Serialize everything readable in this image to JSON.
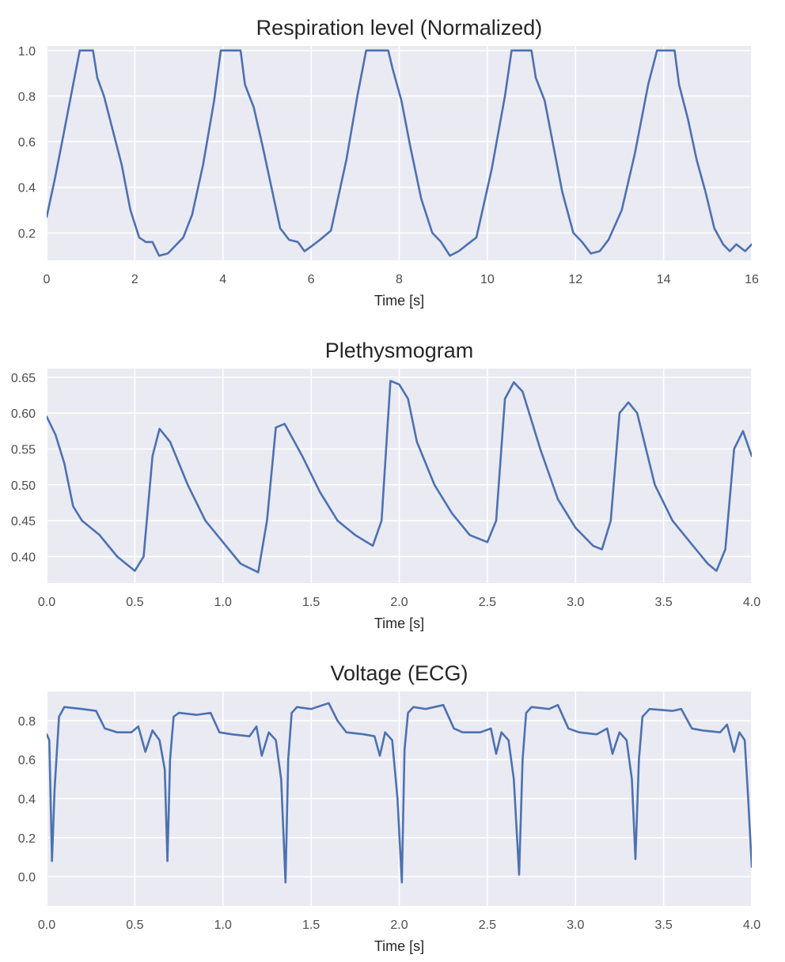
{
  "figure": {
    "background": "#ffffff",
    "plot_background": "#eaeaf2",
    "grid_color": "#ffffff",
    "line_color": "#4c72b0"
  },
  "chart_data": [
    {
      "type": "line",
      "title": "Respiration level (Normalized)",
      "xlabel": "Time [s]",
      "ylabel": "",
      "xlim": [
        0,
        16
      ],
      "ylim": [
        0.08,
        1.02
      ],
      "xticks": [
        0,
        2,
        4,
        6,
        8,
        10,
        12,
        14,
        16
      ],
      "xtick_labels": [
        "0",
        "2",
        "4",
        "6",
        "8",
        "10",
        "12",
        "14",
        "16"
      ],
      "yticks": [
        0.2,
        0.4,
        0.6,
        0.8,
        1.0
      ],
      "ytick_labels": [
        "0.2",
        "0.4",
        "0.6",
        "0.8",
        "1.0"
      ],
      "grid": true,
      "series": [
        {
          "x": [
            0,
            0.2,
            0.4,
            0.6,
            0.75,
            1.05,
            1.15,
            1.3,
            1.5,
            1.7,
            1.9,
            2.1,
            2.25,
            2.4,
            2.55,
            2.75,
            2.95,
            3.1,
            3.3,
            3.55,
            3.8,
            3.95,
            4.4,
            4.5,
            4.7,
            4.9,
            5.1,
            5.3,
            5.5,
            5.7,
            5.85,
            6.0,
            6.2,
            6.45,
            6.8,
            7.05,
            7.25,
            7.75,
            7.85,
            8.05,
            8.25,
            8.5,
            8.75,
            8.95,
            9.15,
            9.35,
            9.55,
            9.75,
            10.1,
            10.4,
            10.55,
            11.0,
            11.1,
            11.3,
            11.5,
            11.7,
            11.95,
            12.15,
            12.35,
            12.55,
            12.75,
            13.05,
            13.35,
            13.65,
            13.85,
            14.25,
            14.35,
            14.55,
            14.75,
            14.95,
            15.15,
            15.35,
            15.5,
            15.65,
            15.85,
            16.0
          ],
          "y": [
            0.27,
            0.45,
            0.65,
            0.85,
            1.0,
            1.0,
            0.88,
            0.8,
            0.65,
            0.5,
            0.3,
            0.18,
            0.16,
            0.16,
            0.1,
            0.11,
            0.15,
            0.18,
            0.28,
            0.5,
            0.78,
            1.0,
            1.0,
            0.85,
            0.75,
            0.58,
            0.4,
            0.22,
            0.17,
            0.16,
            0.12,
            0.14,
            0.17,
            0.21,
            0.52,
            0.8,
            1.0,
            1.0,
            0.92,
            0.78,
            0.58,
            0.35,
            0.2,
            0.16,
            0.1,
            0.12,
            0.15,
            0.18,
            0.48,
            0.8,
            1.0,
            1.0,
            0.88,
            0.78,
            0.58,
            0.38,
            0.2,
            0.16,
            0.11,
            0.12,
            0.17,
            0.3,
            0.55,
            0.85,
            1.0,
            1.0,
            0.85,
            0.7,
            0.52,
            0.38,
            0.22,
            0.15,
            0.12,
            0.15,
            0.12,
            0.15
          ]
        }
      ]
    },
    {
      "type": "line",
      "title": "Plethysmogram",
      "xlabel": "Time [s]",
      "ylabel": "",
      "xlim": [
        0,
        4
      ],
      "ylim": [
        0.363,
        0.662
      ],
      "xticks": [
        0.0,
        0.5,
        1.0,
        1.5,
        2.0,
        2.5,
        3.0,
        3.5,
        4.0
      ],
      "xtick_labels": [
        "0.0",
        "0.5",
        "1.0",
        "1.5",
        "2.0",
        "2.5",
        "3.0",
        "3.5",
        "4.0"
      ],
      "yticks": [
        0.4,
        0.45,
        0.5,
        0.55,
        0.6,
        0.65
      ],
      "ytick_labels": [
        "0.40",
        "0.45",
        "0.50",
        "0.55",
        "0.60",
        "0.65"
      ],
      "grid": true,
      "series": [
        {
          "x": [
            0,
            0.05,
            0.1,
            0.15,
            0.2,
            0.3,
            0.4,
            0.5,
            0.55,
            0.6,
            0.64,
            0.7,
            0.8,
            0.9,
            1.0,
            1.1,
            1.2,
            1.25,
            1.3,
            1.35,
            1.45,
            1.55,
            1.65,
            1.75,
            1.85,
            1.9,
            1.95,
            2.0,
            2.05,
            2.1,
            2.2,
            2.3,
            2.4,
            2.5,
            2.55,
            2.6,
            2.65,
            2.7,
            2.8,
            2.9,
            3.0,
            3.1,
            3.15,
            3.2,
            3.25,
            3.3,
            3.35,
            3.45,
            3.55,
            3.65,
            3.75,
            3.8,
            3.85,
            3.9,
            3.95,
            4.0
          ],
          "y": [
            0.595,
            0.57,
            0.53,
            0.47,
            0.45,
            0.43,
            0.4,
            0.38,
            0.4,
            0.54,
            0.578,
            0.56,
            0.5,
            0.45,
            0.42,
            0.39,
            0.378,
            0.45,
            0.58,
            0.585,
            0.54,
            0.49,
            0.45,
            0.43,
            0.415,
            0.45,
            0.645,
            0.64,
            0.62,
            0.56,
            0.5,
            0.46,
            0.43,
            0.42,
            0.45,
            0.62,
            0.643,
            0.63,
            0.55,
            0.48,
            0.44,
            0.415,
            0.41,
            0.45,
            0.6,
            0.615,
            0.6,
            0.5,
            0.45,
            0.42,
            0.39,
            0.38,
            0.41,
            0.55,
            0.575,
            0.54
          ]
        }
      ]
    },
    {
      "type": "line",
      "title": "Voltage (ECG)",
      "xlabel": "Time [s]",
      "ylabel": "",
      "xlim": [
        0,
        4
      ],
      "ylim": [
        -0.15,
        0.95
      ],
      "xticks": [
        0.0,
        0.5,
        1.0,
        1.5,
        2.0,
        2.5,
        3.0,
        3.5,
        4.0
      ],
      "xtick_labels": [
        "0.0",
        "0.5",
        "1.0",
        "1.5",
        "2.0",
        "2.5",
        "3.0",
        "3.5",
        "4.0"
      ],
      "yticks": [
        0.0,
        0.2,
        0.4,
        0.6,
        0.8
      ],
      "ytick_labels": [
        "0.0",
        "0.2",
        "0.4",
        "0.6",
        "0.8"
      ],
      "grid": true,
      "series": [
        {
          "x": [
            0,
            0.015,
            0.03,
            0.045,
            0.07,
            0.1,
            0.2,
            0.28,
            0.33,
            0.4,
            0.48,
            0.52,
            0.56,
            0.6,
            0.64,
            0.67,
            0.685,
            0.7,
            0.72,
            0.75,
            0.85,
            0.93,
            0.98,
            1.05,
            1.15,
            1.19,
            1.22,
            1.26,
            1.3,
            1.33,
            1.355,
            1.37,
            1.39,
            1.42,
            1.5,
            1.6,
            1.65,
            1.7,
            1.8,
            1.86,
            1.89,
            1.92,
            1.96,
            1.99,
            2.015,
            2.03,
            2.05,
            2.08,
            2.15,
            2.25,
            2.31,
            2.36,
            2.46,
            2.52,
            2.55,
            2.58,
            2.62,
            2.65,
            2.68,
            2.7,
            2.72,
            2.75,
            2.85,
            2.9,
            2.96,
            3.02,
            3.12,
            3.18,
            3.21,
            3.25,
            3.29,
            3.32,
            3.34,
            3.36,
            3.38,
            3.42,
            3.55,
            3.6,
            3.66,
            3.72,
            3.82,
            3.86,
            3.9,
            3.93,
            3.96,
            3.98,
            4.0
          ],
          "y": [
            0.73,
            0.7,
            0.08,
            0.45,
            0.82,
            0.87,
            0.86,
            0.85,
            0.76,
            0.74,
            0.74,
            0.77,
            0.64,
            0.75,
            0.7,
            0.55,
            0.08,
            0.6,
            0.82,
            0.84,
            0.83,
            0.84,
            0.74,
            0.73,
            0.72,
            0.77,
            0.62,
            0.74,
            0.7,
            0.5,
            -0.03,
            0.6,
            0.84,
            0.87,
            0.86,
            0.89,
            0.8,
            0.74,
            0.73,
            0.72,
            0.62,
            0.74,
            0.7,
            0.4,
            -0.03,
            0.65,
            0.84,
            0.87,
            0.86,
            0.88,
            0.76,
            0.74,
            0.74,
            0.76,
            0.63,
            0.74,
            0.7,
            0.5,
            0.01,
            0.6,
            0.84,
            0.87,
            0.86,
            0.88,
            0.76,
            0.74,
            0.73,
            0.76,
            0.63,
            0.74,
            0.7,
            0.5,
            0.09,
            0.6,
            0.82,
            0.86,
            0.85,
            0.86,
            0.76,
            0.75,
            0.74,
            0.78,
            0.64,
            0.74,
            0.7,
            0.4,
            0.05
          ]
        }
      ]
    }
  ]
}
